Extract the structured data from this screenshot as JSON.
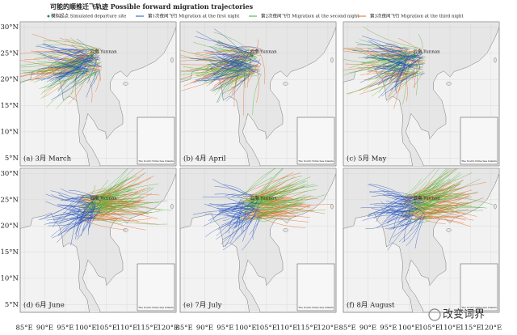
{
  "title": "可能的顺推迁飞轨迹 Possible forward migration trajectories",
  "legend": [
    "模拟起点 Simulated departure site",
    "第1次夜间飞行 Migration at the first night",
    "第2次夜间飞行 Migration at the second night",
    "第3次夜间飞行 Migration at the third night"
  ],
  "panels": [
    {
      "label": "(a) 3月 March",
      "place": "云南 Yunnan",
      "inset": "The South China Sea Islands"
    },
    {
      "label": "(b) 4月 April",
      "place": "云南 Yunnan",
      "inset": "The South China Sea Islands"
    },
    {
      "label": "(c) 5月 May",
      "place": "云南 Yunnan",
      "inset": "The South China Sea Islands"
    },
    {
      "label": "(d) 6月 June",
      "place": "云南 Yunnan",
      "inset": "The South China Sea Islands"
    },
    {
      "label": "(e) 7月 July",
      "place": "云南 Yunnan",
      "inset": "The South China Sea Islands"
    },
    {
      "label": "(f) 8月 August",
      "place": "云南 Yunnan",
      "inset": "The South China Sea Islands"
    }
  ],
  "lat_labels": [
    "30°N",
    "25°N",
    "20°N",
    "15°N",
    "10°N",
    "5°N"
  ],
  "lon_labels": [
    "85°E",
    "90°E",
    "95°E",
    "100°E",
    "105°E",
    "110°E",
    "115°E",
    "120°E"
  ],
  "watermark": "改变词界"
}
